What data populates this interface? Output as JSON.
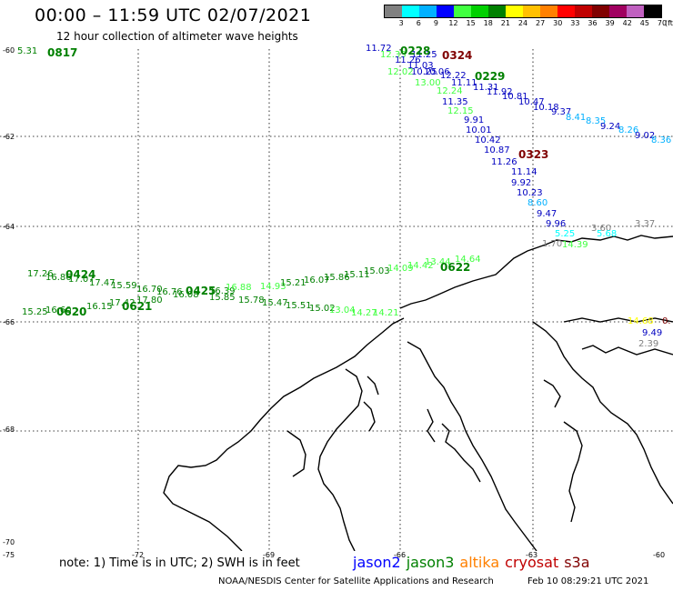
{
  "header": {
    "title": "00:00 – 11:59 UTC 02/07/2021",
    "subtitle": "12 hour collection of altimeter wave heights"
  },
  "colorbar": {
    "colors": [
      "#808080",
      "#00ffff",
      "#00b0ff",
      "#0000ff",
      "#40ff40",
      "#00d000",
      "#008000",
      "#ffff00",
      "#ffc000",
      "#ff8000",
      "#ff0000",
      "#c00000",
      "#800000",
      "#a00060",
      "#c060c0",
      "#000000"
    ],
    "ticks": [
      "3",
      "6",
      "9",
      "12",
      "15",
      "18",
      "21",
      "24",
      "27",
      "30",
      "33",
      "36",
      "39",
      "42",
      "45",
      "70"
    ],
    "unit": "(ft)"
  },
  "axes": {
    "lat_labels": [
      "-60",
      "-62",
      "-64",
      "-66",
      "-68",
      "-70"
    ],
    "lon_labels": [
      "-75",
      "-72",
      "-69",
      "-66",
      "-63",
      "-60"
    ]
  },
  "passes": [
    {
      "id": "0817",
      "color": "#008000"
    },
    {
      "id": "0228",
      "color": "#008000"
    },
    {
      "id": "0324",
      "color": "#800000"
    },
    {
      "id": "0229",
      "color": "#008000"
    },
    {
      "id": "0323",
      "color": "#800000"
    },
    {
      "id": "0424",
      "color": "#008000"
    },
    {
      "id": "0425",
      "color": "#008000"
    },
    {
      "id": "0622",
      "color": "#008000"
    },
    {
      "id": "0621",
      "color": "#008000"
    },
    {
      "id": "0620",
      "color": "#008000"
    }
  ],
  "observations": [
    {
      "v": "5.31",
      "color": "#008000"
    },
    {
      "v": "11.72",
      "color": "#0000c0"
    },
    {
      "v": "12.33",
      "color": "#40ff40"
    },
    {
      "v": "11.26",
      "color": "#0000c0"
    },
    {
      "v": "11.03",
      "color": "#0000c0"
    },
    {
      "v": "11.25",
      "color": "#0000c0"
    },
    {
      "v": "10.25",
      "color": "#0000c0"
    },
    {
      "v": "10.06",
      "color": "#0000c0"
    },
    {
      "v": "12.02",
      "color": "#40ff40"
    },
    {
      "v": "12.22",
      "color": "#0000c0"
    },
    {
      "v": "13.00",
      "color": "#40ff40"
    },
    {
      "v": "11.11",
      "color": "#0000c0"
    },
    {
      "v": "11.31",
      "color": "#0000c0"
    },
    {
      "v": "12.24",
      "color": "#40ff40"
    },
    {
      "v": "11.92",
      "color": "#0000c0"
    },
    {
      "v": "10.81",
      "color": "#0000c0"
    },
    {
      "v": "11.35",
      "color": "#0000c0"
    },
    {
      "v": "10.47",
      "color": "#0000c0"
    },
    {
      "v": "10.18",
      "color": "#0000c0"
    },
    {
      "v": "12.15",
      "color": "#40ff40"
    },
    {
      "v": "9.37",
      "color": "#0000c0"
    },
    {
      "v": "8.41",
      "color": "#00b0ff"
    },
    {
      "v": "9.91",
      "color": "#0000c0"
    },
    {
      "v": "8.35",
      "color": "#00b0ff"
    },
    {
      "v": "9.24",
      "color": "#0000c0"
    },
    {
      "v": "10.01",
      "color": "#0000c0"
    },
    {
      "v": "8.26",
      "color": "#00b0ff"
    },
    {
      "v": "9.02",
      "color": "#0000c0"
    },
    {
      "v": "8.36",
      "color": "#00b0ff"
    },
    {
      "v": "10.42",
      "color": "#0000c0"
    },
    {
      "v": "10.87",
      "color": "#0000c0"
    },
    {
      "v": "11.26",
      "color": "#0000c0"
    },
    {
      "v": "11.14",
      "color": "#0000c0"
    },
    {
      "v": "9.92",
      "color": "#0000c0"
    },
    {
      "v": "10.23",
      "color": "#0000c0"
    },
    {
      "v": "8.60",
      "color": "#00b0ff"
    },
    {
      "v": "9.47",
      "color": "#0000c0"
    },
    {
      "v": "9.96",
      "color": "#0000c0"
    },
    {
      "v": "5.25",
      "color": "#00ffff"
    },
    {
      "v": "3.60",
      "color": "#808080"
    },
    {
      "v": "3.37",
      "color": "#808080"
    },
    {
      "v": "5.68",
      "color": "#00ffff"
    },
    {
      "v": "1.70",
      "color": "#808080"
    },
    {
      "v": "14.39",
      "color": "#40ff40"
    },
    {
      "v": "17.26",
      "color": "#008000"
    },
    {
      "v": "16.86",
      "color": "#008000"
    },
    {
      "v": "17.07",
      "color": "#008000"
    },
    {
      "v": "17.47",
      "color": "#008000"
    },
    {
      "v": "15.59",
      "color": "#008000"
    },
    {
      "v": "16.70",
      "color": "#008000"
    },
    {
      "v": "16.76",
      "color": "#008000"
    },
    {
      "v": "16.08",
      "color": "#008000"
    },
    {
      "v": "16.39",
      "color": "#008000"
    },
    {
      "v": "16.88",
      "color": "#40ff40"
    },
    {
      "v": "14.93",
      "color": "#40ff40"
    },
    {
      "v": "15.21",
      "color": "#008000"
    },
    {
      "v": "16.07",
      "color": "#008000"
    },
    {
      "v": "15.86",
      "color": "#008000"
    },
    {
      "v": "15.11",
      "color": "#008000"
    },
    {
      "v": "15.03",
      "color": "#008000"
    },
    {
      "v": "14.09",
      "color": "#40ff40"
    },
    {
      "v": "14.42",
      "color": "#40ff40"
    },
    {
      "v": "13.44",
      "color": "#40ff40"
    },
    {
      "v": "14.64",
      "color": "#40ff40"
    },
    {
      "v": "15.25",
      "color": "#008000"
    },
    {
      "v": "16.60",
      "color": "#008000"
    },
    {
      "v": "16.15",
      "color": "#008000"
    },
    {
      "v": "17.42",
      "color": "#008000"
    },
    {
      "v": "17.80",
      "color": "#008000"
    },
    {
      "v": "15.85",
      "color": "#008000"
    },
    {
      "v": "15.78",
      "color": "#008000"
    },
    {
      "v": "15.47",
      "color": "#008000"
    },
    {
      "v": "15.51",
      "color": "#008000"
    },
    {
      "v": "15.02",
      "color": "#008000"
    },
    {
      "v": "13.04",
      "color": "#40ff40"
    },
    {
      "v": "14.27",
      "color": "#40ff40"
    },
    {
      "v": "14.21",
      "color": "#40ff40"
    },
    {
      "v": "14.68",
      "color": "#ffff00"
    },
    {
      "v": "0.",
      "color": "#800000"
    },
    {
      "v": "9.49",
      "color": "#0000c0"
    },
    {
      "v": "2.39",
      "color": "#808080"
    }
  ],
  "footer": {
    "note": "note: 1) Time is in UTC; 2) SWH is in feet",
    "satellites": [
      {
        "name": "jason2",
        "color": "#0000ff"
      },
      {
        "name": "jason3",
        "color": "#008000"
      },
      {
        "name": "altika",
        "color": "#ff8000"
      },
      {
        "name": "cryosat",
        "color": "#c00000"
      },
      {
        "name": "s3a",
        "color": "#800000"
      }
    ],
    "credit": "NOAA/NESDIS Center for Satellite Applications and Research",
    "timestamp": "Feb 10 08:29:21 UTC 2021"
  }
}
